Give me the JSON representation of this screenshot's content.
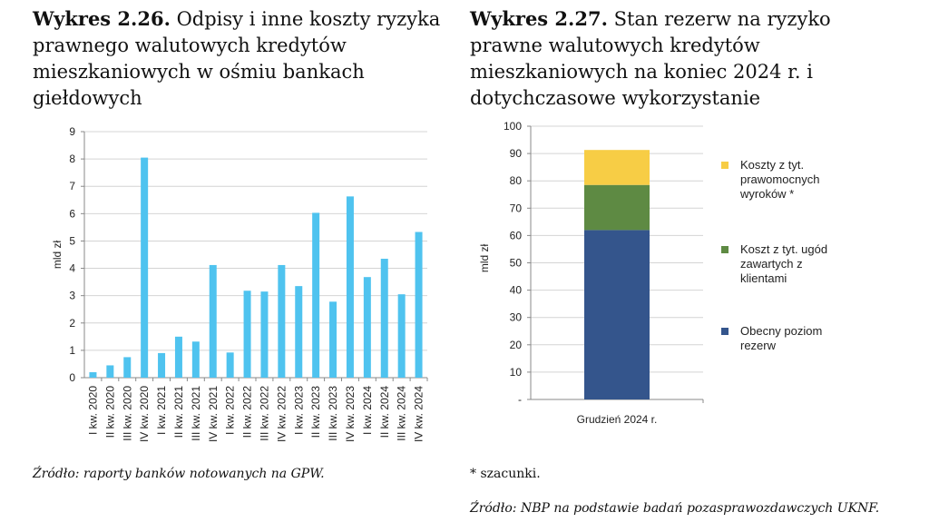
{
  "left_caption": {
    "label": "Wykres 2.26.",
    "text": " Odpisy i inne koszty ryzyka prawnego walutowych kredytów mieszkaniowych w ośmiu bankach giełdowych"
  },
  "right_caption": {
    "label": "Wykres 2.27.",
    "text": " Stan rezerw na ryzyko prawne walutowych kredytów mieszkaniowych na koniec 2024 r. i dotychczasowe wykorzystanie"
  },
  "left_source": "Źródło: raporty banków notowanych na GPW.",
  "right_note": "* szacunki.",
  "right_source": "Źródło: NBP na podstawie badań pozasprawozdawczych UKNF.",
  "colors": {
    "bar": "#4fc3ef",
    "reserve": "#34558c",
    "settlements": "#5e8a43",
    "judgments": "#f7cd45"
  },
  "chart_data": [
    {
      "type": "bar",
      "ylabel": "mld zł",
      "xlabel": "",
      "ylim": [
        0,
        9
      ],
      "yticks": [
        "0",
        "1",
        "2",
        "3",
        "4",
        "5",
        "6",
        "7",
        "8",
        "9"
      ],
      "grid": true,
      "categories": [
        "I kw. 2020",
        "II kw. 2020",
        "III kw. 2020",
        "IV kw. 2020",
        "I kw. 2021",
        "II kw. 2021",
        "III kw. 2021",
        "IV kw. 2021",
        "I kw. 2022",
        "II kw. 2022",
        "III kw. 2022",
        "IV kw. 2022",
        "I kw. 2023",
        "II kw. 2023",
        "III kw. 2023",
        "IV kw. 2023",
        "I kw. 2024",
        "II kw. 2024",
        "III kw. 2024",
        "IV kw. 2024"
      ],
      "values": [
        0.2,
        0.45,
        0.75,
        8.05,
        0.9,
        1.5,
        1.32,
        4.12,
        0.92,
        3.18,
        3.15,
        4.12,
        3.35,
        6.03,
        2.78,
        6.63,
        3.68,
        4.35,
        3.05,
        5.33
      ]
    },
    {
      "type": "bar",
      "stacked": true,
      "ylabel": "mld zł",
      "ylim": [
        0,
        100
      ],
      "yticks": [
        "-",
        "10",
        "20",
        "30",
        "40",
        "50",
        "60",
        "70",
        "80",
        "90",
        "100"
      ],
      "grid": true,
      "categories": [
        "Grudzień 2024 r."
      ],
      "legend_position": "right",
      "series": [
        {
          "name": "Obecny poziom rezerw",
          "values": [
            62
          ],
          "color_key": "reserve",
          "legend_lines": [
            "Obecny poziom",
            "rezerw"
          ]
        },
        {
          "name": "Koszt z tyt. ugód zawartych z klientami",
          "values": [
            16.5
          ],
          "color_key": "settlements",
          "legend_lines": [
            "Koszt z tyt. ugód",
            "zawartych z",
            "klientami"
          ]
        },
        {
          "name": "Koszty z tyt. prawomocnych wyroków *",
          "values": [
            12.8
          ],
          "color_key": "judgments",
          "legend_lines": [
            "Koszty z tyt.",
            "prawomocnych",
            "wyroków *"
          ]
        }
      ]
    }
  ]
}
